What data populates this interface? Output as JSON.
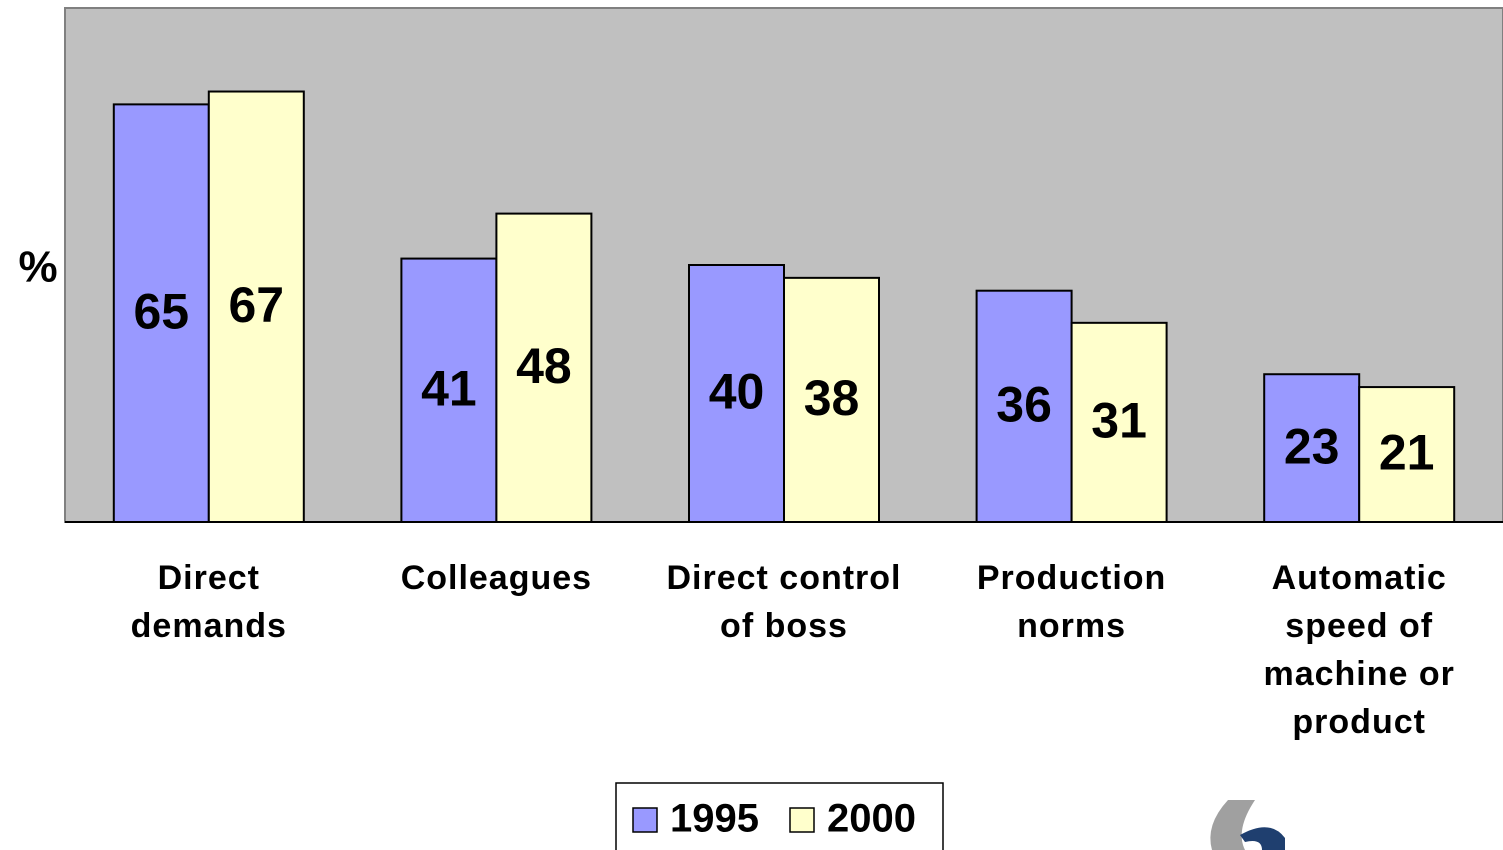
{
  "chart_data": {
    "type": "bar",
    "y_label": "%",
    "categories": [
      "Direct\ndemands",
      "Colleagues",
      "Direct control\nof boss",
      "Production\nnorms",
      "Automatic\nspeed of\nmachine or\nproduct"
    ],
    "series": [
      {
        "name": "1995",
        "color": "#9999ff",
        "values": [
          65,
          41,
          40,
          36,
          23
        ]
      },
      {
        "name": "2000",
        "color": "#ffffcc",
        "values": [
          67,
          48,
          38,
          31,
          21
        ]
      }
    ],
    "ylim": [
      0,
      80
    ],
    "legend": "bottom"
  }
}
